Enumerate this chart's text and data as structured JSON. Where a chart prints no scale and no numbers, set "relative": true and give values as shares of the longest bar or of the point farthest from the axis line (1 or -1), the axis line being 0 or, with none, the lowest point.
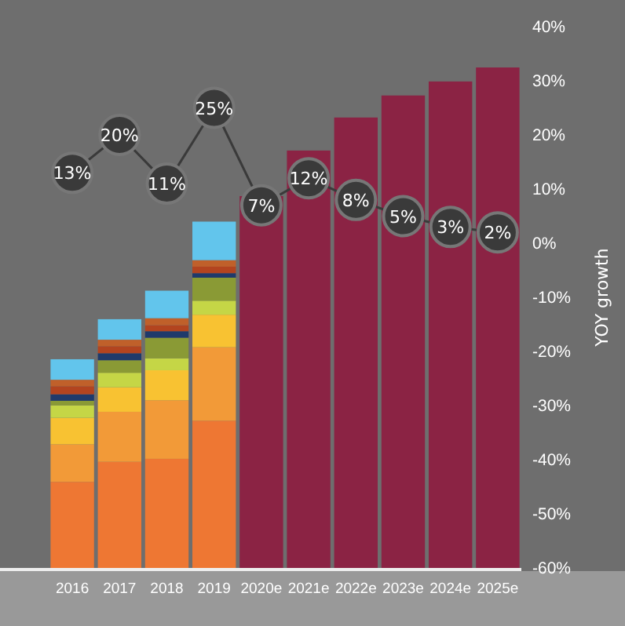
{
  "chart_data": [
    {
      "type": "bar",
      "stacked": true,
      "relative": true,
      "categories": [
        "2016",
        "2017",
        "2018",
        "2019",
        "2020e",
        "2021e",
        "2022e",
        "2023e",
        "2024e",
        "2025e"
      ],
      "series": [
        {
          "color": "#ee7733",
          "values": [
            0.172,
            0.212,
            0.218,
            0.294,
            null,
            null,
            null,
            null,
            null,
            null
          ]
        },
        {
          "color": "#f29a38",
          "values": [
            0.075,
            0.1,
            0.117,
            0.147,
            null,
            null,
            null,
            null,
            null,
            null
          ]
        },
        {
          "color": "#f8c232",
          "values": [
            0.053,
            0.049,
            0.06,
            0.065,
            null,
            null,
            null,
            null,
            null,
            null
          ]
        },
        {
          "color": "#c5d646",
          "values": [
            0.025,
            0.029,
            0.024,
            0.028,
            null,
            null,
            null,
            null,
            null,
            null
          ]
        },
        {
          "color": "#8a9a35",
          "values": [
            0.009,
            0.025,
            0.041,
            0.046,
            null,
            null,
            null,
            null,
            null,
            null
          ]
        },
        {
          "color": "#1f3a6b",
          "values": [
            0.013,
            0.014,
            0.013,
            0.009,
            null,
            null,
            null,
            null,
            null,
            null
          ]
        },
        {
          "color": "#b3441f",
          "values": [
            0.016,
            0.014,
            0.012,
            0.013,
            null,
            null,
            null,
            null,
            null,
            null
          ]
        },
        {
          "color": "#c0602a",
          "values": [
            0.013,
            0.013,
            0.014,
            0.013,
            null,
            null,
            null,
            null,
            null,
            null
          ]
        },
        {
          "color": "#62c5ec",
          "values": [
            0.041,
            0.041,
            0.055,
            0.077,
            null,
            null,
            null,
            null,
            null,
            null
          ]
        },
        {
          "color": "#8b2344",
          "values": [
            null,
            null,
            null,
            null,
            0.743,
            0.834,
            0.9,
            0.944,
            0.972,
            1
          ]
        }
      ]
    },
    {
      "type": "line",
      "marker": "circle",
      "tick_labels": "y",
      "ylabel": "YOY growth",
      "ylim": [
        -60,
        40
      ],
      "yticks": [
        {
          "value": 40,
          "label": "40%"
        },
        {
          "value": 30,
          "label": "30%"
        },
        {
          "value": 20,
          "label": "20%"
        },
        {
          "value": 10,
          "label": "10%"
        },
        {
          "value": 0,
          "label": "0%"
        },
        {
          "value": -10,
          "label": "-10%"
        },
        {
          "value": -20,
          "label": "-20%"
        },
        {
          "value": -30,
          "label": "-30%"
        },
        {
          "value": -40,
          "label": "-40%"
        },
        {
          "value": -50,
          "label": "-50%"
        },
        {
          "value": -60,
          "label": "-60%"
        }
      ],
      "series": [
        {
          "color": "#3a3a3a",
          "values": [
            13,
            20,
            11,
            25,
            7,
            12,
            8,
            5,
            3,
            2
          ],
          "value_labels": [
            "13%",
            "20%",
            "11%",
            "25%",
            "7%",
            "12%",
            "8%",
            "5%",
            "3%",
            "2%"
          ]
        }
      ]
    }
  ]
}
